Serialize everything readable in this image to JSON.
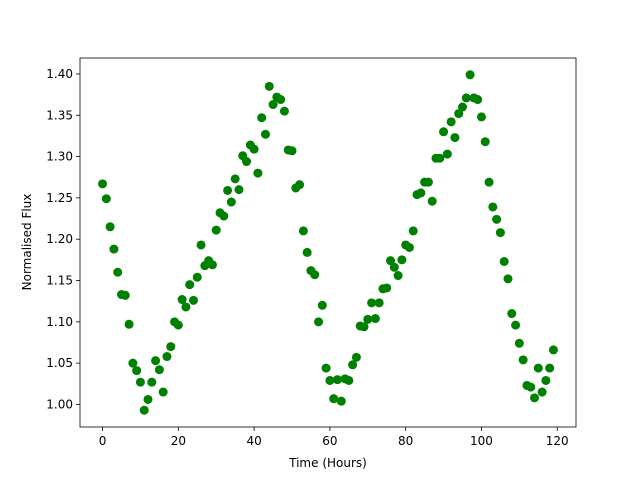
{
  "chart_data": {
    "type": "scatter",
    "x_label": "Time (Hours)",
    "y_label": "Normalised Flux",
    "color": "#008000",
    "x": [
      0,
      1,
      2,
      3,
      4,
      5,
      6,
      7,
      8,
      9,
      10,
      11,
      12,
      13,
      14,
      15,
      16,
      17,
      18,
      19,
      20,
      21,
      22,
      23,
      24,
      25,
      26,
      27,
      28,
      29,
      30,
      31,
      32,
      33,
      34,
      35,
      36,
      37,
      38,
      39,
      40,
      41,
      42,
      43,
      44,
      45,
      46,
      47,
      48,
      49,
      50,
      51,
      52,
      53,
      54,
      55,
      56,
      57,
      58,
      59,
      60,
      61,
      62,
      63,
      64,
      65,
      66,
      67,
      68,
      69,
      70,
      71,
      72,
      73,
      74,
      75,
      76,
      77,
      78,
      79,
      80,
      81,
      82,
      83,
      84,
      85,
      86,
      87,
      88,
      89,
      90,
      91,
      92,
      93,
      94,
      95,
      96,
      97,
      98,
      99,
      100,
      101,
      102,
      103,
      104,
      105,
      106,
      107,
      108,
      109,
      110,
      111,
      112,
      113,
      114,
      115,
      116,
      117,
      118,
      119
    ],
    "values": [
      1.267,
      1.249,
      1.215,
      1.188,
      1.16,
      1.133,
      1.132,
      1.097,
      1.05,
      1.041,
      1.027,
      0.993,
      1.006,
      1.027,
      1.053,
      1.042,
      1.015,
      1.058,
      1.07,
      1.1,
      1.096,
      1.127,
      1.118,
      1.145,
      1.126,
      1.154,
      1.193,
      1.168,
      1.174,
      1.169,
      1.211,
      1.232,
      1.228,
      1.259,
      1.245,
      1.273,
      1.26,
      1.301,
      1.294,
      1.314,
      1.309,
      1.28,
      1.347,
      1.327,
      1.385,
      1.363,
      1.372,
      1.369,
      1.355,
      1.308,
      1.307,
      1.262,
      1.266,
      1.21,
      1.184,
      1.162,
      1.157,
      1.1,
      1.12,
      1.044,
      1.029,
      1.007,
      1.03,
      1.004,
      1.031,
      1.029,
      1.048,
      1.057,
      1.095,
      1.094,
      1.103,
      1.123,
      1.104,
      1.123,
      1.14,
      1.141,
      1.174,
      1.166,
      1.156,
      1.175,
      1.193,
      1.19,
      1.21,
      1.254,
      1.256,
      1.269,
      1.269,
      1.246,
      1.298,
      1.298,
      1.33,
      1.303,
      1.342,
      1.323,
      1.352,
      1.36,
      1.371,
      1.399,
      1.371,
      1.369,
      1.348,
      1.318,
      1.269,
      1.239,
      1.224,
      1.208,
      1.173,
      1.152,
      1.11,
      1.096,
      1.074,
      1.054,
      1.023,
      1.021,
      1.008,
      1.044,
      1.015,
      1.029,
      1.044,
      1.066
    ],
    "xlim": [
      -5.95,
      124.95
    ],
    "ylim": [
      0.9727,
      1.4193
    ],
    "xticks": [
      0,
      20,
      40,
      60,
      80,
      100,
      120
    ],
    "yticks": [
      {
        "value": 1,
        "label": "1.00"
      },
      1.05,
      {
        "value": 1.1,
        "label": "1.10"
      },
      1.15,
      {
        "value": 1.2,
        "label": "1.20"
      },
      1.25,
      {
        "value": 1.3,
        "label": "1.30"
      },
      1.35,
      {
        "value": 1.4,
        "label": "1.40"
      }
    ]
  }
}
